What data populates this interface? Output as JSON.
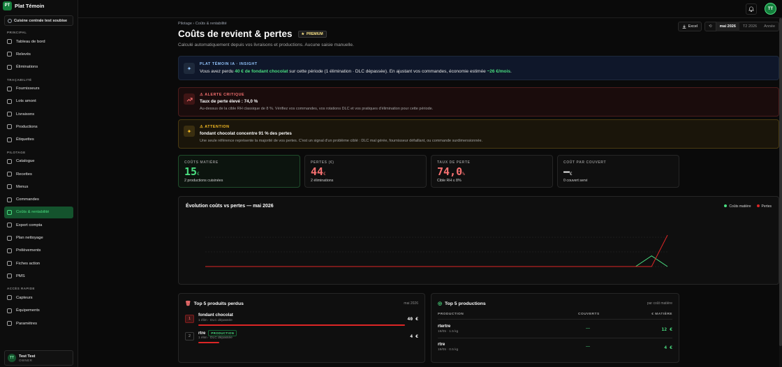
{
  "brand": {
    "logo": "PT",
    "name": "Plat Témoin"
  },
  "site": {
    "label": "Cuisine centrale test soubise"
  },
  "sidebar": {
    "sections": [
      {
        "title": "PRINCIPAL",
        "items": [
          "Tableau de bord",
          "Relevés",
          "Éliminations"
        ]
      },
      {
        "title": "TRAÇABILITÉ",
        "items": [
          "Fournisseurs",
          "Lots amont",
          "Livraisons",
          "Productions",
          "Étiquettes"
        ]
      },
      {
        "title": "PILOTAGE",
        "items": [
          "Catalogue",
          "Recettes",
          "Menus",
          "Commandes",
          "Coûts & rentabilité",
          "Export compta",
          "Plan nettoyage",
          "Prélèvements",
          "Fiches action",
          "PMS"
        ]
      },
      {
        "title": "ACCÈS RAPIDE",
        "items": [
          "Capteurs",
          "Équipements",
          "Paramètres"
        ]
      }
    ],
    "active": "Coûts & rentabilité"
  },
  "user": {
    "initials": "TT",
    "name": "Test Test",
    "role": "OWNER"
  },
  "topbar": {
    "avatar": "TT"
  },
  "breadcrumb": {
    "parent": "Pilotage",
    "sep": "›",
    "current": "Coûts & rentabilité"
  },
  "page": {
    "title": "Coûts de revient & pertes",
    "badge": "PREMIUM",
    "subtitle": "Calculé automatiquement depuis vos livraisons et productions. Aucune saisie manuelle."
  },
  "actions": {
    "excel": "Excel",
    "back": "⟲",
    "periods": [
      "mai 2026",
      "T2 2026",
      "Année"
    ],
    "selected": "mai 2026"
  },
  "insight": {
    "tag": "PLAT TÉMOIN IA · INSIGHT",
    "t1": "Vous avez perdu ",
    "amount": "40 € de fondant chocolat",
    "t2": " sur cette période (1 élimination · DLC dépassée). En ajustant vos commandes, économie estimée ",
    "saving": "~26 €/mois",
    "t3": "."
  },
  "alert_critical": {
    "tag": "⚠ ALERTE CRITIQUE",
    "title": "Taux de perte élevé : 74,0 %",
    "desc": "Au-dessus de la cible RH classique de 8 %. Vérifiez vos commandes, vos rotations DLC et vos pratiques d'élimination pour cette période."
  },
  "alert_warning": {
    "tag": "⚠ ATTENTION",
    "title": "fondant chocolat concentre 91 % des pertes",
    "desc": "Une seule référence représente la majorité de vos pertes. C'est un signal d'un problème ciblé : DLC mal gérée, fournisseur défaillant, ou commande surdimensionnée."
  },
  "kpis": [
    {
      "label": "COÛTS MATIÈRE",
      "value": "15",
      "unit": "€",
      "note": "2 productions cuisinées"
    },
    {
      "label": "PERTES (€)",
      "value": "44",
      "unit": "€",
      "note": "2 éliminations"
    },
    {
      "label": "TAUX DE PERTE",
      "value": "74,0",
      "unit": "%",
      "note": "Cible RH ≤ 8%"
    },
    {
      "label": "COÛT PAR COUVERT",
      "value": "—",
      "unit": "€",
      "note": "0 couvert servi"
    }
  ],
  "chart_title": "Évolution coûts vs pertes — mai 2026",
  "chart_data": {
    "type": "line",
    "title": "Évolution coûts vs pertes — mai 2026",
    "series": [
      {
        "name": "Coûts matière",
        "color": "#4ade80",
        "values": [
          0,
          0,
          0,
          0,
          0,
          0,
          0,
          0,
          0,
          0,
          0,
          0,
          0,
          0,
          0,
          0,
          0,
          0,
          0,
          0,
          0,
          0,
          0,
          0,
          0,
          0,
          0,
          0,
          15,
          0
        ]
      },
      {
        "name": "Pertes",
        "color": "#dc2626",
        "values": [
          0,
          0,
          0,
          0,
          0,
          0,
          0,
          0,
          0,
          0,
          0,
          0,
          0,
          0,
          0,
          0,
          0,
          0,
          0,
          0,
          0,
          0,
          0,
          0,
          0,
          0,
          0,
          0,
          0,
          44
        ]
      }
    ],
    "grid": true,
    "legend": "top-right"
  },
  "top_losses": {
    "title": "Top 5 produits perdus",
    "period": "mai 2026",
    "rows": [
      {
        "rank": "1",
        "name": "fondant chocolat",
        "badge": "",
        "sub": "1 élim · DLC dépassée",
        "value": "40 €",
        "share": 1.0
      },
      {
        "rank": "2",
        "name": "rtre",
        "badge": "PRODUCTION",
        "sub": "1 élim · DLC dépassée",
        "value": "4 €",
        "share": 0.1
      }
    ]
  },
  "top_productions": {
    "title": "Top 5 productions",
    "subtitle": "par coût matière",
    "headers": [
      "PRODUCTION",
      "COUVERTS",
      "€ MATIÈRE"
    ],
    "rows": [
      {
        "name": "rtertre",
        "sub": "19/05 · 1.5 kg",
        "covers": "—",
        "value": "12 €"
      },
      {
        "name": "rtre",
        "sub": "19/05 · 0.5 kg",
        "covers": "—",
        "value": "4 €"
      }
    ]
  }
}
